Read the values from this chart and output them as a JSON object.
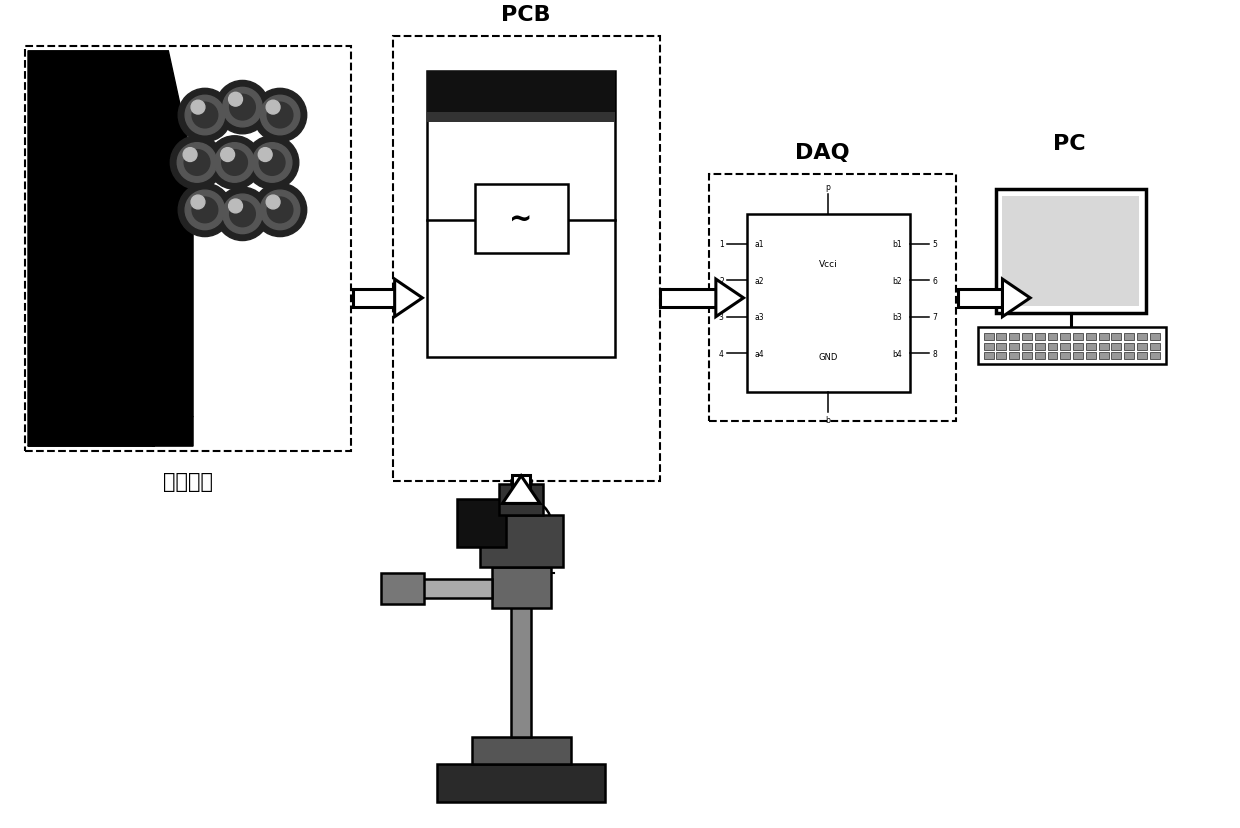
{
  "bg_color": "#ffffff",
  "label_rod_bundle": "棒束通道",
  "label_pcb": "PCB",
  "label_daq": "DAQ",
  "label_pc": "PC",
  "fig_width": 12.4,
  "fig_height": 8.29,
  "lw_dash": 1.5,
  "lw_solid": 1.8,
  "lw_thick": 2.5
}
